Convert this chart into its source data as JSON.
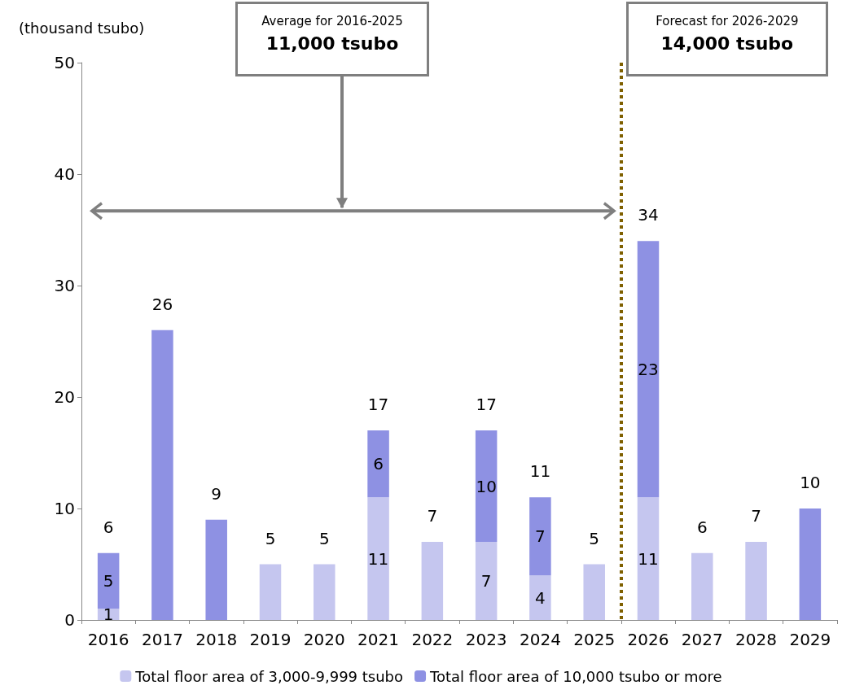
{
  "chart_data": {
    "type": "bar",
    "stacked": true,
    "ylabel": "(thousand tsubo)",
    "categories": [
      "2016",
      "2017",
      "2018",
      "2019",
      "2020",
      "2021",
      "2022",
      "2023",
      "2024",
      "2025",
      "2026",
      "2027",
      "2028",
      "2029"
    ],
    "series": [
      {
        "name": "Total floor area of 3,000-9,999 tsubo",
        "color": "#c5c6ef",
        "values": [
          1,
          null,
          null,
          5,
          5,
          11,
          7,
          7,
          4,
          5,
          11,
          6,
          7,
          null
        ],
        "value_labels": [
          "1",
          null,
          null,
          null,
          null,
          "11",
          null,
          "7",
          "4",
          null,
          "11",
          null,
          null,
          null
        ]
      },
      {
        "name": "Total floor area of 10,000 tsubo or more",
        "color": "#8e91e3",
        "values": [
          5,
          26,
          9,
          null,
          null,
          6,
          null,
          10,
          7,
          null,
          23,
          null,
          null,
          10
        ],
        "value_labels": [
          "5",
          null,
          null,
          null,
          null,
          "6",
          null,
          "10",
          "7",
          null,
          "23",
          null,
          null,
          null
        ]
      }
    ],
    "totals": [
      "6",
      "26",
      "9",
      "5",
      "5",
      "17",
      "7",
      "17",
      "11",
      "5",
      "34",
      "6",
      "7",
      "10"
    ],
    "ylim": [
      0,
      50
    ],
    "yticks": [
      0,
      10,
      20,
      30,
      40,
      50
    ],
    "grid": false,
    "legend": "bottom",
    "ref_lines": [
      {
        "axis": "x",
        "value": "2026",
        "color": "#7f6000",
        "line_style": "dotted"
      }
    ],
    "annotations": [
      "Average for 2016-2025",
      "11,000 tsubo",
      "Forecast for 2026-2029",
      "14,000 tsubo"
    ]
  }
}
